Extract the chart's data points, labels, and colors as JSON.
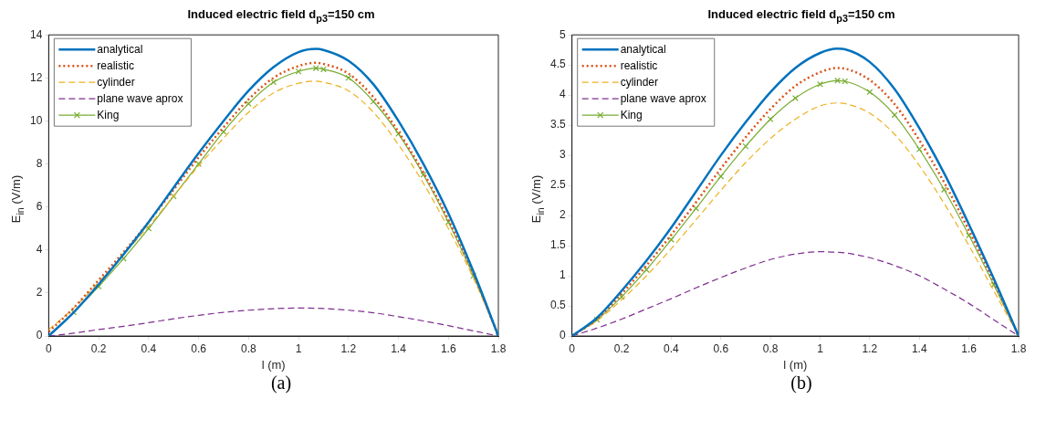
{
  "chart_data": [
    {
      "type": "line",
      "title": "Induced electric field d$_{p3}$=150 cm",
      "xlabel": "l (m)",
      "ylabel": "E$_{in}$ (V/m)",
      "annotations": [
        "(a)"
      ],
      "legend": "top left",
      "grid": false,
      "x": [
        0,
        0.1,
        0.2,
        0.3,
        0.4,
        0.5,
        0.6,
        0.7,
        0.8,
        0.9,
        1.0,
        1.07,
        1.1,
        1.2,
        1.3,
        1.4,
        1.5,
        1.6,
        1.7,
        1.8
      ],
      "xlim": [
        0,
        1.8
      ],
      "xticks": [
        0,
        0.2,
        0.4,
        0.6,
        0.8,
        1,
        1.2,
        1.4,
        1.6,
        1.8
      ],
      "ylim": [
        0,
        14
      ],
      "yticks": [
        0,
        2,
        4,
        6,
        8,
        10,
        12,
        14
      ],
      "series": [
        {
          "name": "analytical",
          "color": "#0072bd",
          "line_style": "solid",
          "marker": "none",
          "values": [
            0,
            1.1,
            2.4,
            3.8,
            5.3,
            6.9,
            8.5,
            10.0,
            11.4,
            12.5,
            13.2,
            13.35,
            13.3,
            12.8,
            11.7,
            10.0,
            8.0,
            5.7,
            3.0,
            0
          ]
        },
        {
          "name": "realistic",
          "color": "#d95319",
          "line_style": "dotted",
          "marker": "none",
          "values": [
            0.2,
            1.3,
            2.6,
            3.9,
            5.3,
            6.8,
            8.3,
            9.7,
            11.0,
            12.0,
            12.55,
            12.7,
            12.65,
            12.2,
            11.1,
            9.5,
            7.6,
            5.4,
            2.9,
            0
          ]
        },
        {
          "name": "cylinder",
          "color": "#edb120",
          "line_style": "dashed",
          "marker": "none",
          "values": [
            0.3,
            1.3,
            2.5,
            3.8,
            5.1,
            6.5,
            7.9,
            9.2,
            10.4,
            11.3,
            11.75,
            11.85,
            11.8,
            11.4,
            10.4,
            8.9,
            7.1,
            5.0,
            2.7,
            0
          ]
        },
        {
          "name": "plane wave aprox",
          "color": "#7e2f8e",
          "line_style": "dashed",
          "marker": "none",
          "values": [
            0,
            0.13,
            0.3,
            0.45,
            0.62,
            0.8,
            0.96,
            1.1,
            1.2,
            1.27,
            1.3,
            1.29,
            1.28,
            1.2,
            1.08,
            0.9,
            0.7,
            0.48,
            0.24,
            0
          ]
        },
        {
          "name": "King",
          "color": "#77ac30",
          "line_style": "solid",
          "marker": "cross",
          "values": [
            0,
            1.1,
            2.3,
            3.6,
            5.0,
            6.5,
            8.0,
            9.5,
            10.8,
            11.8,
            12.3,
            12.45,
            12.4,
            12.0,
            10.9,
            9.4,
            7.5,
            5.3,
            2.8,
            0
          ]
        }
      ]
    },
    {
      "type": "line",
      "title": "Induced electric field d$_{p3}$=150 cm",
      "xlabel": "l (m)",
      "ylabel": "E$_{in}$ (V/m)",
      "annotations": [
        "(b)"
      ],
      "legend": "top left",
      "grid": false,
      "x": [
        0,
        0.1,
        0.2,
        0.3,
        0.4,
        0.5,
        0.6,
        0.7,
        0.8,
        0.9,
        1.0,
        1.07,
        1.1,
        1.2,
        1.3,
        1.4,
        1.5,
        1.6,
        1.7,
        1.8
      ],
      "xlim": [
        0,
        1.8
      ],
      "xticks": [
        0,
        0.2,
        0.4,
        0.6,
        0.8,
        1,
        1.2,
        1.4,
        1.6,
        1.8
      ],
      "ylim": [
        0,
        5
      ],
      "yticks": [
        0,
        0.5,
        1,
        1.5,
        2,
        2.5,
        3,
        3.5,
        4,
        4.5,
        5
      ],
      "series": [
        {
          "name": "analytical",
          "color": "#0072bd",
          "line_style": "solid",
          "marker": "none",
          "values": [
            0,
            0.3,
            0.75,
            1.25,
            1.8,
            2.4,
            3.0,
            3.55,
            4.05,
            4.45,
            4.7,
            4.77,
            4.76,
            4.55,
            4.1,
            3.45,
            2.7,
            1.85,
            0.95,
            0
          ]
        },
        {
          "name": "realistic",
          "color": "#d95319",
          "line_style": "dotted",
          "marker": "none",
          "values": [
            0,
            0.28,
            0.7,
            1.17,
            1.68,
            2.22,
            2.78,
            3.3,
            3.77,
            4.15,
            4.38,
            4.45,
            4.44,
            4.25,
            3.85,
            3.25,
            2.55,
            1.75,
            0.9,
            0
          ]
        },
        {
          "name": "cylinder",
          "color": "#edb120",
          "line_style": "dashed",
          "marker": "none",
          "values": [
            0,
            0.25,
            0.6,
            1.0,
            1.45,
            1.93,
            2.42,
            2.88,
            3.28,
            3.6,
            3.82,
            3.87,
            3.86,
            3.7,
            3.35,
            2.83,
            2.2,
            1.5,
            0.75,
            0
          ]
        },
        {
          "name": "plane wave aprox",
          "color": "#7e2f8e",
          "line_style": "dashed",
          "marker": "none",
          "values": [
            0,
            0.13,
            0.28,
            0.45,
            0.62,
            0.8,
            0.97,
            1.13,
            1.27,
            1.36,
            1.4,
            1.39,
            1.38,
            1.3,
            1.17,
            1.0,
            0.78,
            0.54,
            0.27,
            0
          ]
        },
        {
          "name": "King",
          "color": "#77ac30",
          "line_style": "solid",
          "marker": "cross",
          "values": [
            0,
            0.27,
            0.65,
            1.1,
            1.6,
            2.12,
            2.65,
            3.15,
            3.6,
            3.95,
            4.18,
            4.24,
            4.23,
            4.05,
            3.67,
            3.1,
            2.43,
            1.67,
            0.85,
            0
          ]
        }
      ]
    }
  ]
}
